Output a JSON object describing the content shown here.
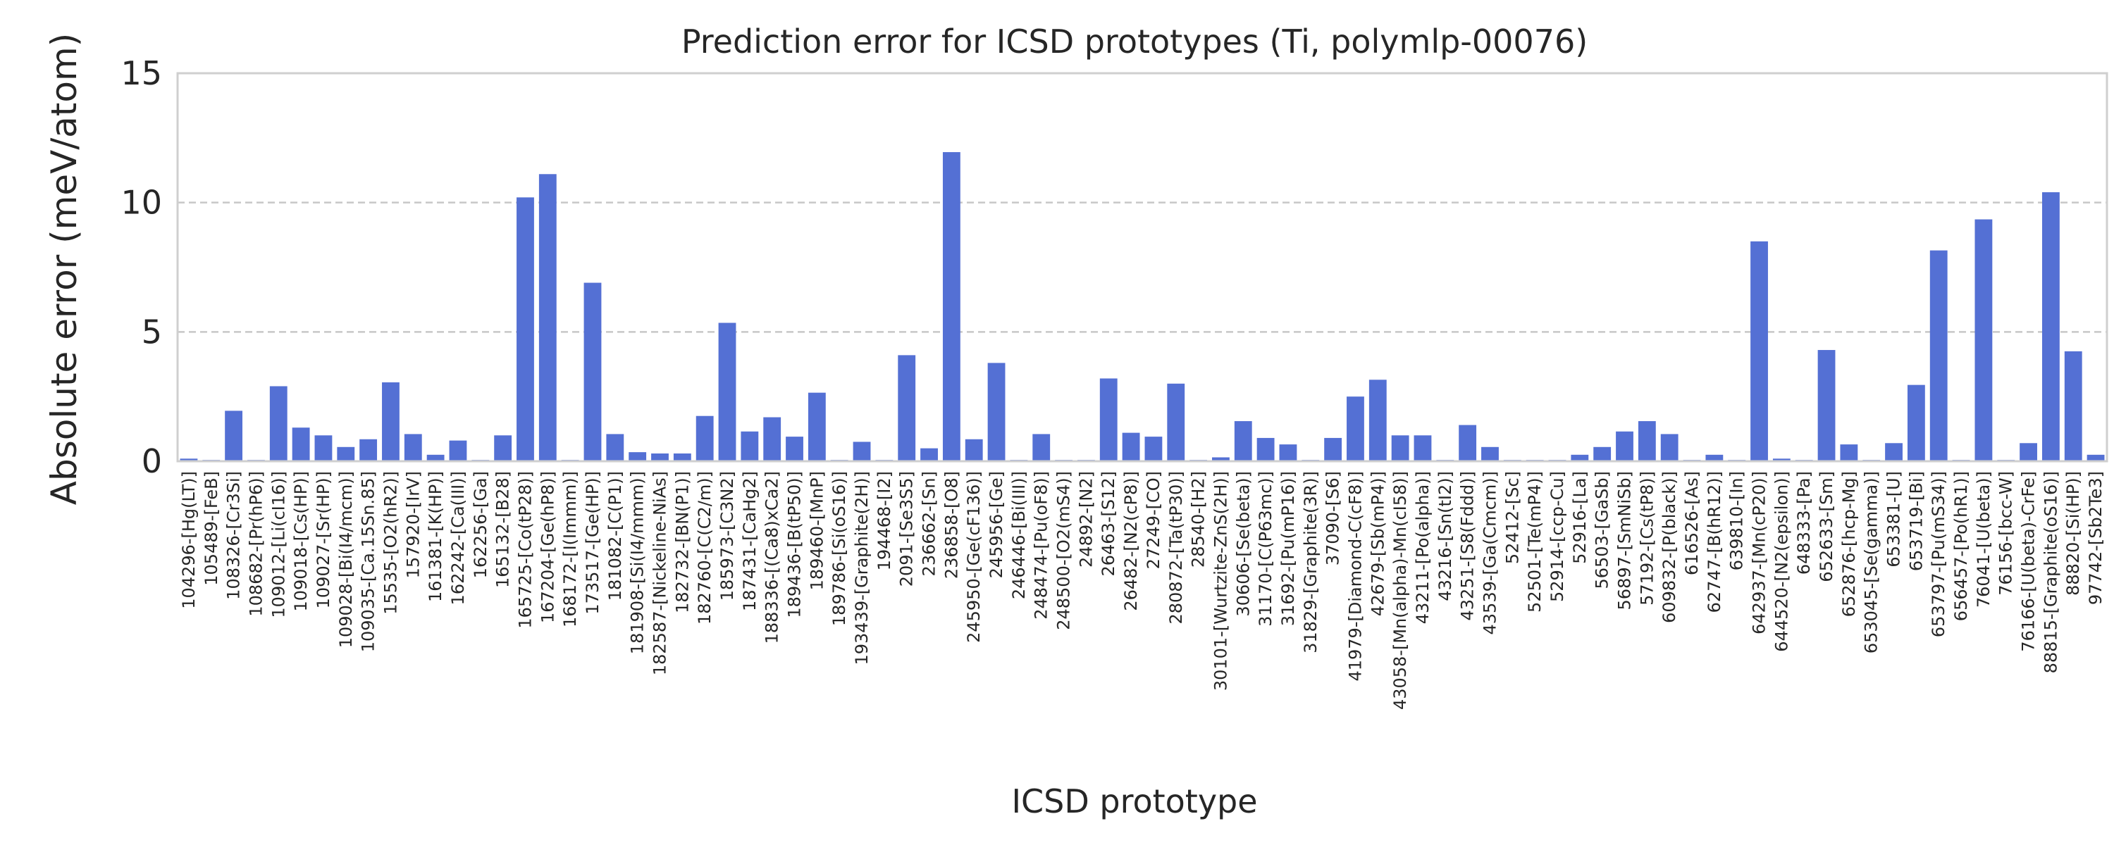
{
  "chart_data": {
    "type": "bar",
    "title": "Prediction error for ICSD prototypes (Ti, polymlp-00076)",
    "xlabel": "ICSD prototype",
    "ylabel": "Absolute error (meV/atom)",
    "ylim": [
      0,
      15
    ],
    "yticks": [
      0,
      5,
      10,
      15
    ],
    "grid": "horizontal dashed",
    "bar_color": "#5470d4",
    "categories": [
      "104296-[Hg(LT)]",
      "105489-[FeB]",
      "108326-[Cr3Si]",
      "108682-[Pr(hP6)]",
      "109012-[Li(cI16)]",
      "109018-[Cs(HP)]",
      "109027-[Sr(HP)]",
      "109028-[Bi(I4/mcm)]",
      "109035-[Ca.15Sn.85]",
      "15535-[O2(hR2)]",
      "157920-[IrV]",
      "161381-[K(HP)]",
      "162242-[Ca(III)]",
      "162256-[Ga]",
      "165132-[B28]",
      "165725-[Co(tP28)]",
      "167204-[Ge(hP8)]",
      "168172-[I(Immm)]",
      "173517-[Ge(HP)]",
      "181082-[C(P1)]",
      "181908-[Si(I4/mmm)]",
      "182587-[Nickeline-NiAs]",
      "182732-[BN(P1)]",
      "182760-[C(C2/m)]",
      "185973-[C3N2]",
      "187431-[CaHg2]",
      "188336-[(Ca8)xCa2]",
      "189436-[B(tP50)]",
      "189460-[MnP]",
      "189786-[Si(oS16)]",
      "193439-[Graphite(2H)]",
      "194468-[I2]",
      "2091-[Se3S5]",
      "236662-[Sn]",
      "236858-[O8]",
      "245950-[Ge(cF136)]",
      "245956-[Ge]",
      "246446-[Bi(III)]",
      "248474-[Pu(oF8)]",
      "248500-[O2(mS4)]",
      "24892-[N2]",
      "26463-[S12]",
      "26482-[N2(cP8)]",
      "27249-[CO]",
      "280872-[Ta(tP30)]",
      "28540-[H2]",
      "30101-[Wurtzite-ZnS(2H)]",
      "30606-[Se(beta)]",
      "31170-[C(P63mc)]",
      "31692-[Pu(mP16)]",
      "31829-[Graphite(3R)]",
      "37090-[S6]",
      "41979-[Diamond-C(cF8)]",
      "42679-[Sb(mP4)]",
      "43058-[Mn(alpha)-Mn(cI58)]",
      "43211-[Po(alpha)]",
      "43216-[Sn(tI2)]",
      "43251-[S8(Fddd)]",
      "43539-[Ga(Cmcm)]",
      "52412-[Sc]",
      "52501-[Te(mP4)]",
      "52914-[ccp-Cu]",
      "52916-[La]",
      "56503-[GaSb]",
      "56897-[SmNiSb]",
      "57192-[Cs(tP8)]",
      "609832-[P(black)]",
      "616526-[As]",
      "62747-[B(hR12)]",
      "639810-[In]",
      "642937-[Mn(cP20)]",
      "644520-[N2(epsilon)]",
      "648333-[Pa]",
      "652633-[Sm]",
      "652876-[hcp-Mg]",
      "653045-[Se(gamma)]",
      "653381-[U]",
      "653719-[Bi]",
      "653797-[Pu(mS34)]",
      "656457-[Po(hR1)]",
      "76041-[U(beta)]",
      "76156-[bcc-W]",
      "76166-[U(beta)-CrFe]",
      "88815-[Graphite(oS16)]",
      "88820-[Si(HP)]",
      "97742-[Sb2Te3]"
    ],
    "values": [
      0.1,
      0.05,
      1.95,
      0.05,
      2.9,
      1.3,
      1.0,
      0.55,
      0.85,
      3.05,
      1.05,
      0.25,
      0.8,
      0.05,
      1.0,
      10.2,
      11.1,
      0.05,
      6.9,
      1.05,
      0.35,
      0.3,
      0.3,
      1.75,
      5.35,
      1.15,
      1.7,
      0.95,
      2.65,
      0.05,
      0.75,
      0.05,
      4.1,
      0.5,
      11.95,
      0.85,
      3.8,
      0.05,
      1.05,
      0.05,
      0.05,
      3.2,
      1.1,
      0.95,
      3.0,
      0.05,
      0.15,
      1.55,
      0.9,
      0.65,
      0.05,
      0.9,
      2.5,
      3.15,
      1.0,
      1.0,
      0.05,
      1.4,
      0.55,
      0.05,
      0.05,
      0.05,
      0.25,
      0.55,
      1.15,
      1.55,
      1.05,
      0.05,
      0.25,
      0.05,
      8.5,
      0.1,
      0.05,
      4.3,
      0.65,
      0.05,
      0.7,
      2.95,
      8.15,
      0.05,
      9.35,
      0.05,
      0.7,
      10.4,
      4.25,
      0.25
    ]
  }
}
